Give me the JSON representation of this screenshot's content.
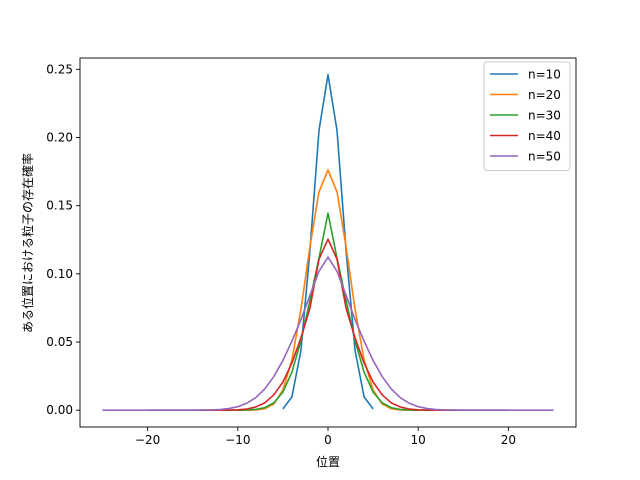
{
  "chart_data": {
    "type": "line",
    "title": "",
    "xlabel": "位置",
    "ylabel": "ある位置における粒子の存在確率",
    "xlim": [
      -27.5,
      27.5
    ],
    "ylim": [
      -0.0123,
      0.2583
    ],
    "x_ticks": [
      -20,
      -10,
      0,
      10,
      20
    ],
    "x_tick_labels": [
      "−20",
      "−10",
      "0",
      "10",
      "20"
    ],
    "y_ticks": [
      0.0,
      0.05,
      0.1,
      0.15,
      0.2,
      0.25
    ],
    "y_tick_labels": [
      "0.00",
      "0.05",
      "0.10",
      "0.15",
      "0.20",
      "0.25"
    ],
    "grid": false,
    "legend_position": "top-right",
    "series": [
      {
        "name": "n=10",
        "color": "#1f77b4",
        "x": [
          -5,
          -4,
          -3,
          -2,
          -1,
          0,
          1,
          2,
          3,
          4,
          5
        ],
        "values": [
          0.001,
          0.0098,
          0.0439,
          0.1172,
          0.2051,
          0.2461,
          0.2051,
          0.1172,
          0.0439,
          0.0098,
          0.001
        ]
      },
      {
        "name": "n=20",
        "color": "#ff7f0e",
        "x": [
          -10,
          -9,
          -8,
          -7,
          -6,
          -5,
          -4,
          -3,
          -2,
          -1,
          0,
          1,
          2,
          3,
          4,
          5,
          6,
          7,
          8,
          9,
          10
        ],
        "values": [
          0.0,
          0.0,
          0.0002,
          0.0011,
          0.0046,
          0.0148,
          0.037,
          0.0739,
          0.1201,
          0.1602,
          0.1762,
          0.1602,
          0.1201,
          0.0739,
          0.037,
          0.0148,
          0.0046,
          0.0011,
          0.0002,
          0.0,
          0.0
        ]
      },
      {
        "name": "n=30",
        "color": "#2ca02c",
        "x": [
          -15,
          -14,
          -13,
          -12,
          -11,
          -10,
          -9,
          -8,
          -7,
          -6,
          -5,
          -4,
          -3,
          -2,
          -1,
          0,
          1,
          2,
          3,
          4,
          5,
          6,
          7,
          8,
          9,
          10,
          11,
          12,
          13,
          14,
          15
        ],
        "values": [
          0.0,
          0.0,
          0.0,
          0.0,
          0.0,
          0.0,
          0.0002,
          0.0006,
          0.0019,
          0.0055,
          0.0133,
          0.028,
          0.0509,
          0.0806,
          0.1115,
          0.1445,
          0.1115,
          0.0806,
          0.0509,
          0.028,
          0.0133,
          0.0055,
          0.0019,
          0.0006,
          0.0002,
          0.0,
          0.0,
          0.0,
          0.0,
          0.0,
          0.0
        ]
      },
      {
        "name": "n=40",
        "color": "#d62728",
        "x": [
          -20,
          -19,
          -18,
          -17,
          -16,
          -15,
          -14,
          -13,
          -12,
          -11,
          -10,
          -9,
          -8,
          -7,
          -6,
          -5,
          -4,
          -3,
          -2,
          -1,
          0,
          1,
          2,
          3,
          4,
          5,
          6,
          7,
          8,
          9,
          10,
          11,
          12,
          13,
          14,
          15,
          16,
          17,
          18,
          19,
          20
        ],
        "values": [
          0.0,
          0.0,
          0.0,
          0.0,
          0.0,
          0.0,
          0.0,
          0.0,
          0.0,
          0.0001,
          0.0003,
          0.0009,
          0.0024,
          0.0055,
          0.0113,
          0.0207,
          0.0346,
          0.0531,
          0.0749,
          0.1107,
          0.1254,
          0.1107,
          0.0749,
          0.0531,
          0.0346,
          0.0207,
          0.0113,
          0.0055,
          0.0024,
          0.0009,
          0.0003,
          0.0001,
          0.0,
          0.0,
          0.0,
          0.0,
          0.0,
          0.0,
          0.0,
          0.0,
          0.0
        ]
      },
      {
        "name": "n=50",
        "color": "#9467bd",
        "x": [
          -25,
          -24,
          -23,
          -22,
          -21,
          -20,
          -19,
          -18,
          -17,
          -16,
          -15,
          -14,
          -13,
          -12,
          -11,
          -10,
          -9,
          -8,
          -7,
          -6,
          -5,
          -4,
          -3,
          -2,
          -1,
          0,
          1,
          2,
          3,
          4,
          5,
          6,
          7,
          8,
          9,
          10,
          11,
          12,
          13,
          14,
          15,
          16,
          17,
          18,
          19,
          20,
          21,
          22,
          23,
          24,
          25
        ],
        "values": [
          0.0,
          0.0,
          0.0,
          0.0,
          0.0,
          0.0,
          0.0,
          0.0,
          0.0,
          0.0,
          0.0,
          0.0001,
          0.0002,
          0.0005,
          0.0012,
          0.0026,
          0.0051,
          0.0093,
          0.0157,
          0.0248,
          0.0365,
          0.0507,
          0.0665,
          0.0843,
          0.1019,
          0.1123,
          0.1019,
          0.0843,
          0.0665,
          0.0507,
          0.0365,
          0.0248,
          0.0157,
          0.0093,
          0.0051,
          0.0026,
          0.0012,
          0.0005,
          0.0002,
          0.0001,
          0.0,
          0.0,
          0.0,
          0.0,
          0.0,
          0.0,
          0.0,
          0.0,
          0.0,
          0.0,
          0.0
        ]
      }
    ]
  }
}
